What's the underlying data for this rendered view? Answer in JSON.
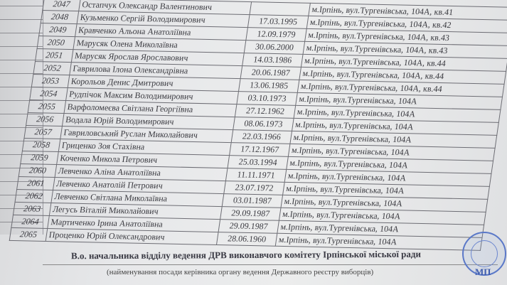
{
  "rows": [
    {
      "num": "2047",
      "name": "Остапчук Олександр Валентинович",
      "date": "",
      "address": "м.Ірпінь, вул.Тургенівська, 104А, кв.41"
    },
    {
      "num": "2048",
      "name": "Кузьменко Сергій Володимирович",
      "date": "17.03.1995",
      "address": "м.Ірпінь, вул.Тургенівська, 104А, кв.42"
    },
    {
      "num": "2049",
      "name": "Кравченко Альона Анатоліївна",
      "date": "12.09.1979",
      "address": "м.Ірпінь, вул.Тургенівська, 104А, кв.43"
    },
    {
      "num": "2050",
      "name": "Марусяк Олена Миколаївна",
      "date": "30.06.2000",
      "address": "м.Ірпінь, вул.Тургенівська, 104А, кв.43"
    },
    {
      "num": "2051",
      "name": "Марусяк Ярослав Ярославович",
      "date": "14.03.1986",
      "address": "м.Ірпінь, вул.Тургенівська, 104А, кв.44"
    },
    {
      "num": "2052",
      "name": "Гаврилова Ілона Олександрівна",
      "date": "20.06.1987",
      "address": "м.Ірпінь, вул.Тургенівська, 104А, кв.44"
    },
    {
      "num": "2053",
      "name": "Корольов Денис Дмитрович",
      "date": "13.06.1985",
      "address": "м.Ірпінь, вул.Тургенівська, 104А, кв.44"
    },
    {
      "num": "2054",
      "name": "Рудпічок Максим Володимирович",
      "date": "03.10.1973",
      "address": "м.Ірпінь, вул.Тургенівська, 104А"
    },
    {
      "num": "2055",
      "name": "Варфоломеєва Світлана Георгіївна",
      "date": "27.12.1962",
      "address": "м.Ірпінь, вул.Тургенівська, 104А"
    },
    {
      "num": "2056",
      "name": "Водала Юрій Володимирович",
      "date": "08.06.1973",
      "address": "м.Ірпінь, вул.Тургенівська, 104А"
    },
    {
      "num": "2057",
      "name": "Гавриловський Руслан Миколайович",
      "date": "22.03.1966",
      "address": "м.Ірпінь, вул.Тургенівська, 104А"
    },
    {
      "num": "2058",
      "name": "Гриценко Зоя Стахівна",
      "date": "17.12.1967",
      "address": "м.Ірпінь, вул.Тургенівська, 104А"
    },
    {
      "num": "2059",
      "name": "Коченко Микола Петрович",
      "date": "25.03.1994",
      "address": "м.Ірпінь, вул.Тургенівська, 104А"
    },
    {
      "num": "2060",
      "name": "Левченко Аліна Анатоліївна",
      "date": "11.11.1971",
      "address": "м.Ірпінь, вул.Тургенівська, 104А"
    },
    {
      "num": "2061",
      "name": "Левченко Анатолій Петрович",
      "date": "23.07.1972",
      "address": "м.Ірпінь, вул.Тургенівська, 104А"
    },
    {
      "num": "2062",
      "name": "Левченко Світлана Миколаївна",
      "date": "03.01.1987",
      "address": "м.Ірпінь, вул.Тургенівська, 104А"
    },
    {
      "num": "2063",
      "name": "Легусь Віталій Миколайович",
      "date": "29.09.1987",
      "address": "м.Ірпінь, вул.Тургенівська, 104А"
    },
    {
      "num": "2064",
      "name": "Мартиченко Ірина Анатоліївна",
      "date": "29.09.1987",
      "address": "м.Ірпінь, вул.Тургенівська, 104А"
    },
    {
      "num": "2065",
      "name": "Проценко Юрій Олександрович",
      "date": "28.06.1960",
      "address": "м.Ірпінь, вул.Тургенівська, 104А"
    }
  ],
  "footer": {
    "signatory": "В.о. начальника відділу ведення ДРВ виконавчого комітету Ірпінської міської ради",
    "caption": "(найменування посади керівника органу ведення Державного реєстру виборців)",
    "stamp_mark": "МП"
  },
  "colors": {
    "stamp": "#5a78c8",
    "ink": "#3a3a40"
  }
}
